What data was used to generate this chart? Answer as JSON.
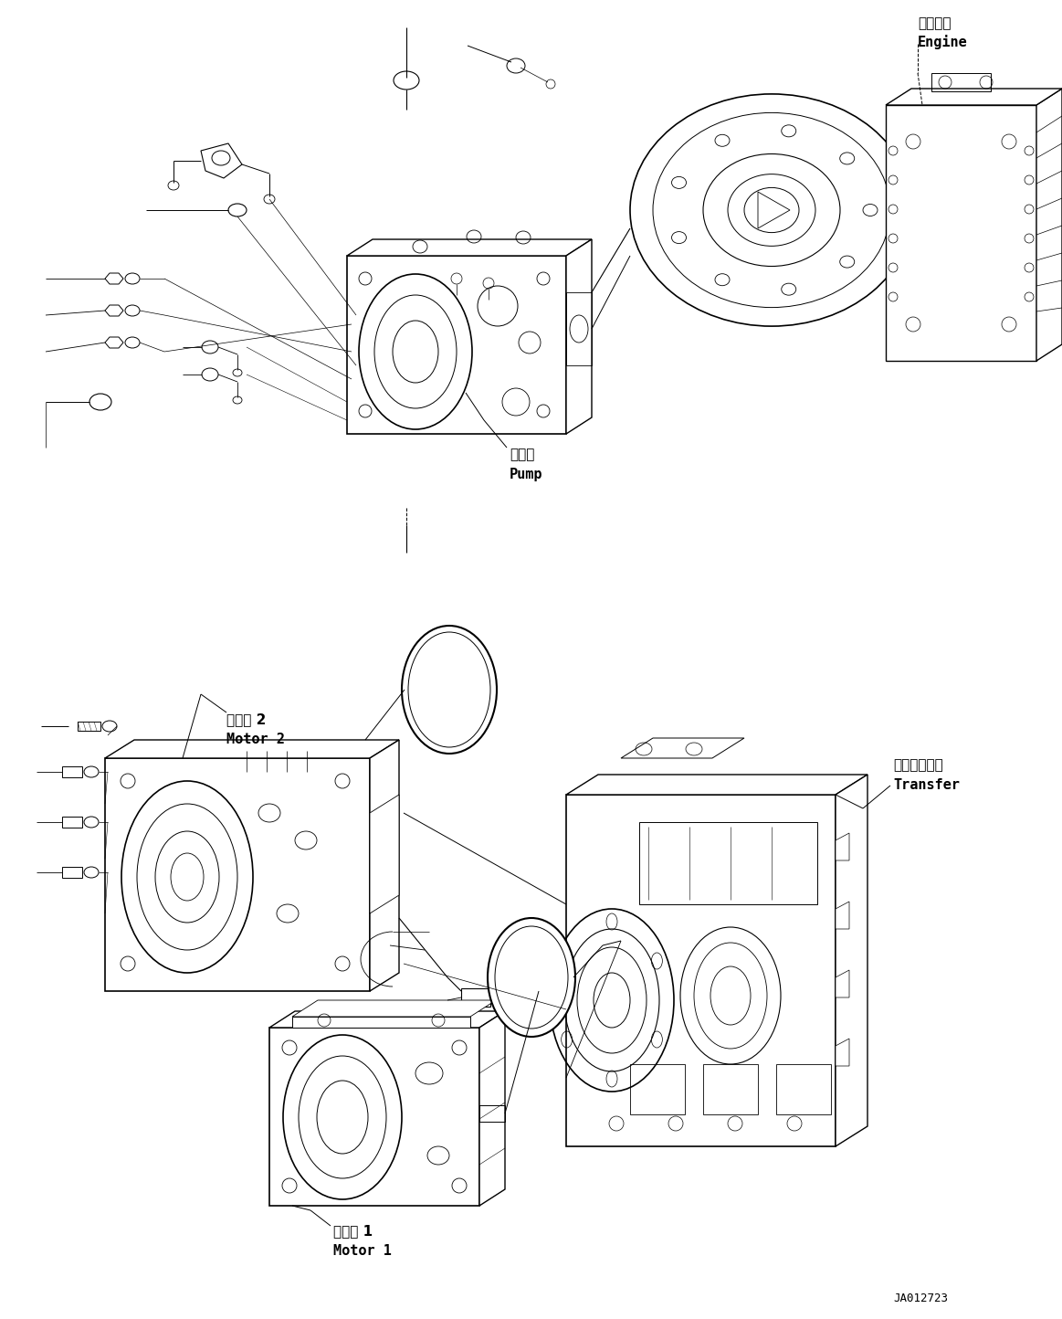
{
  "bg_color": "#ffffff",
  "line_color": "#000000",
  "text_color": "#000000",
  "fig_width": 11.63,
  "fig_height": 14.44,
  "dpi": 100,
  "labels": {
    "engine_jp": "エンジン",
    "engine_en": "Engine",
    "pump_jp": "ポンプ",
    "pump_en": "Pump",
    "transfer_jp": "トランスファ",
    "transfer_en": "Transfer",
    "motor2_jp": "モータ 2",
    "motor2_en": "Motor 2",
    "motor1_jp": "モータ 1",
    "motor1_en": "Motor 1",
    "part_number": "JA012723"
  }
}
